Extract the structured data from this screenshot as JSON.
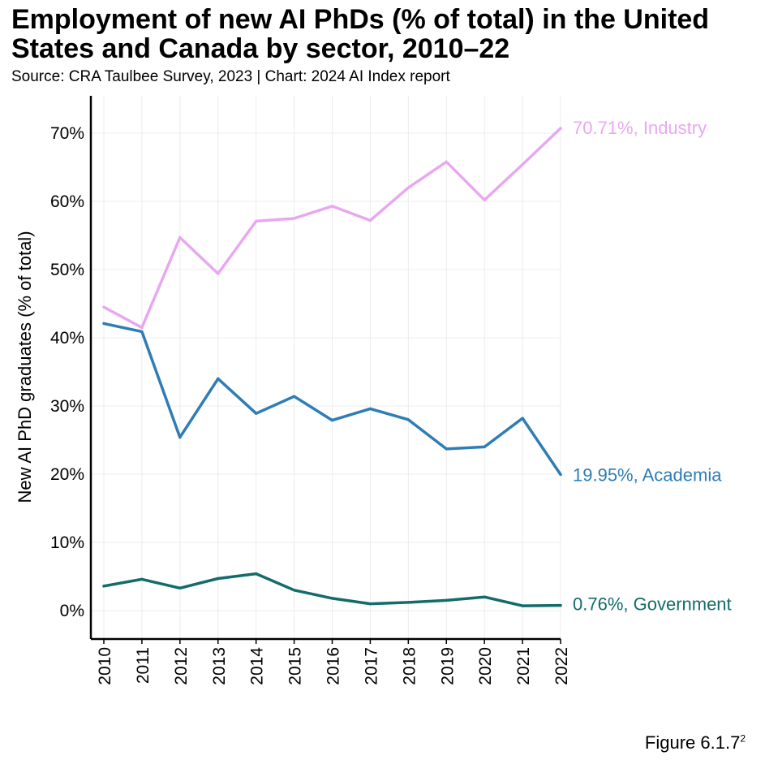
{
  "title": "Employment of new AI PhDs (% of total) in the United States and Canada by sector, 2010–22",
  "subtitle": "Source: CRA Taulbee Survey, 2023 | Chart: 2024 AI Index report",
  "figure_label": "Figure 6.1.7",
  "figure_superscript": "2",
  "colors": {
    "industry": "#e8a8f0",
    "academia": "#2e7db5",
    "government": "#146b6b",
    "grid": "#ececec"
  },
  "chart_data": {
    "type": "line",
    "title": "Employment of new AI PhDs (% of total) in the United States and Canada by sector, 2010–22",
    "xlabel": "",
    "ylabel": "New AI PhD graduates (% of total)",
    "x": [
      "2010",
      "2011",
      "2012",
      "2013",
      "2014",
      "2015",
      "2016",
      "2017",
      "2018",
      "2019",
      "2020",
      "2021",
      "2022"
    ],
    "ylim": [
      -4,
      75
    ],
    "yticks": [
      0,
      10,
      20,
      30,
      40,
      50,
      60,
      70
    ],
    "ytick_labels": [
      "0%",
      "10%",
      "20%",
      "30%",
      "40%",
      "50%",
      "60%",
      "70%"
    ],
    "grid": true,
    "series": [
      {
        "key": "industry",
        "name": "Industry",
        "end_label": "70.71%, Industry",
        "values": [
          44.5,
          41.5,
          54.7,
          49.4,
          57.1,
          57.5,
          59.3,
          57.2,
          62.0,
          65.8,
          60.2,
          65.4,
          70.71
        ]
      },
      {
        "key": "academia",
        "name": "Academia",
        "end_label": "19.95%, Academia",
        "values": [
          42.1,
          40.9,
          25.4,
          34.0,
          28.9,
          31.4,
          27.9,
          29.6,
          28.0,
          23.7,
          24.0,
          28.2,
          19.95
        ]
      },
      {
        "key": "government",
        "name": "Government",
        "end_label": "0.76%, Government",
        "values": [
          3.6,
          4.6,
          3.3,
          4.7,
          5.4,
          3.0,
          1.8,
          1.0,
          1.2,
          1.5,
          2.0,
          0.7,
          0.76
        ]
      }
    ]
  }
}
